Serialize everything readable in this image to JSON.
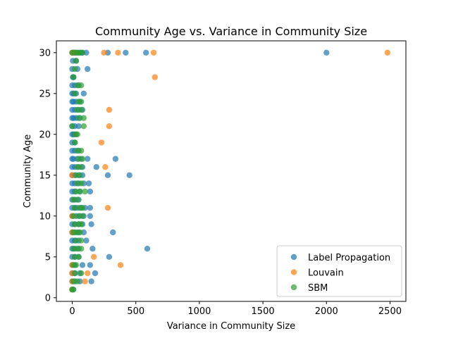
{
  "chart_data": {
    "type": "scatter",
    "title": "Community Age vs. Variance in Community Size",
    "xlabel": "Variance in Community Size",
    "ylabel": "Community Age",
    "xlim": [
      -125,
      2625
    ],
    "ylim": [
      -0.45,
      31.45
    ],
    "xticks": [
      0,
      500,
      1000,
      1500,
      2000,
      2500
    ],
    "yticks": [
      0,
      5,
      10,
      15,
      20,
      25,
      30
    ],
    "grid": false,
    "legend_position": "bottom-right",
    "series": [
      {
        "name": "Label Propagation",
        "color": "#1f77b4",
        "points": [
          [
            0,
            30
          ],
          [
            10,
            30
          ],
          [
            20,
            30
          ],
          [
            30,
            30
          ],
          [
            50,
            30
          ],
          [
            70,
            30
          ],
          [
            80,
            30
          ],
          [
            110,
            30
          ],
          [
            280,
            30
          ],
          [
            420,
            30
          ],
          [
            580,
            30
          ],
          [
            2000,
            30
          ],
          [
            5,
            29
          ],
          [
            30,
            29
          ],
          [
            0,
            28
          ],
          [
            40,
            28
          ],
          [
            120,
            28
          ],
          [
            5,
            27
          ],
          [
            10,
            27
          ],
          [
            0,
            26
          ],
          [
            20,
            26
          ],
          [
            50,
            26
          ],
          [
            0,
            25
          ],
          [
            10,
            25
          ],
          [
            30,
            25
          ],
          [
            90,
            25
          ],
          [
            0,
            24
          ],
          [
            10,
            24
          ],
          [
            30,
            24
          ],
          [
            60,
            24
          ],
          [
            0,
            23
          ],
          [
            20,
            23
          ],
          [
            50,
            23
          ],
          [
            80,
            23
          ],
          [
            0,
            22
          ],
          [
            10,
            22
          ],
          [
            30,
            22
          ],
          [
            60,
            22
          ],
          [
            0,
            21
          ],
          [
            20,
            21
          ],
          [
            50,
            21
          ],
          [
            0,
            20
          ],
          [
            10,
            20
          ],
          [
            30,
            20
          ],
          [
            0,
            19
          ],
          [
            20,
            19
          ],
          [
            0,
            18
          ],
          [
            20,
            18
          ],
          [
            50,
            18
          ],
          [
            0,
            17
          ],
          [
            10,
            17
          ],
          [
            40,
            17
          ],
          [
            70,
            17
          ],
          [
            120,
            17
          ],
          [
            340,
            17
          ],
          [
            0,
            16
          ],
          [
            20,
            16
          ],
          [
            50,
            16
          ],
          [
            80,
            16
          ],
          [
            190,
            16
          ],
          [
            0,
            15
          ],
          [
            20,
            15
          ],
          [
            50,
            15
          ],
          [
            80,
            15
          ],
          [
            280,
            15
          ],
          [
            450,
            15
          ],
          [
            0,
            14
          ],
          [
            20,
            14
          ],
          [
            50,
            14
          ],
          [
            90,
            14
          ],
          [
            130,
            14
          ],
          [
            0,
            13
          ],
          [
            20,
            13
          ],
          [
            60,
            13
          ],
          [
            140,
            13
          ],
          [
            0,
            12
          ],
          [
            20,
            12
          ],
          [
            50,
            12
          ],
          [
            0,
            11
          ],
          [
            20,
            11
          ],
          [
            40,
            11
          ],
          [
            70,
            11
          ],
          [
            100,
            11
          ],
          [
            140,
            11
          ],
          [
            0,
            10
          ],
          [
            30,
            10
          ],
          [
            60,
            10
          ],
          [
            90,
            10
          ],
          [
            140,
            10
          ],
          [
            0,
            9
          ],
          [
            20,
            9
          ],
          [
            50,
            9
          ],
          [
            80,
            9
          ],
          [
            150,
            9
          ],
          [
            0,
            8
          ],
          [
            20,
            8
          ],
          [
            50,
            8
          ],
          [
            90,
            8
          ],
          [
            320,
            8
          ],
          [
            0,
            7
          ],
          [
            20,
            7
          ],
          [
            50,
            7
          ],
          [
            110,
            7
          ],
          [
            0,
            6
          ],
          [
            20,
            6
          ],
          [
            50,
            6
          ],
          [
            160,
            6
          ],
          [
            590,
            6
          ],
          [
            0,
            5
          ],
          [
            20,
            5
          ],
          [
            50,
            5
          ],
          [
            290,
            5
          ],
          [
            0,
            4
          ],
          [
            20,
            4
          ],
          [
            80,
            4
          ],
          [
            140,
            4
          ],
          [
            0,
            3
          ],
          [
            20,
            3
          ],
          [
            60,
            3
          ],
          [
            180,
            3
          ],
          [
            0,
            2
          ],
          [
            20,
            2
          ],
          [
            60,
            2
          ],
          [
            150,
            2
          ],
          [
            0,
            1
          ],
          [
            10,
            1
          ]
        ]
      },
      {
        "name": "Louvain",
        "color": "#ff7f0e",
        "points": [
          [
            0,
            30
          ],
          [
            20,
            30
          ],
          [
            250,
            30
          ],
          [
            360,
            30
          ],
          [
            640,
            30
          ],
          [
            2480,
            30
          ],
          [
            650,
            27
          ],
          [
            290,
            23
          ],
          [
            290,
            21
          ],
          [
            230,
            19
          ],
          [
            260,
            16
          ],
          [
            0,
            15
          ],
          [
            280,
            11
          ],
          [
            0,
            10
          ],
          [
            0,
            8
          ],
          [
            170,
            5
          ],
          [
            0,
            4
          ],
          [
            380,
            4
          ],
          [
            0,
            3
          ],
          [
            120,
            3
          ],
          [
            0,
            2
          ],
          [
            100,
            2
          ],
          [
            0,
            1
          ]
        ]
      },
      {
        "name": "SBM",
        "color": "#2ca02c",
        "points": [
          [
            0,
            30
          ],
          [
            20,
            30
          ],
          [
            40,
            30
          ],
          [
            60,
            30
          ],
          [
            80,
            30
          ],
          [
            30,
            29
          ],
          [
            20,
            28
          ],
          [
            10,
            27
          ],
          [
            40,
            26
          ],
          [
            70,
            26
          ],
          [
            20,
            25
          ],
          [
            50,
            24
          ],
          [
            70,
            24
          ],
          [
            40,
            23
          ],
          [
            70,
            23
          ],
          [
            50,
            22
          ],
          [
            90,
            22
          ],
          [
            0,
            21
          ],
          [
            90,
            21
          ],
          [
            20,
            20
          ],
          [
            40,
            20
          ],
          [
            20,
            19
          ],
          [
            40,
            18
          ],
          [
            70,
            18
          ],
          [
            50,
            17
          ],
          [
            80,
            17
          ],
          [
            40,
            16
          ],
          [
            70,
            16
          ],
          [
            30,
            15
          ],
          [
            60,
            15
          ],
          [
            40,
            14
          ],
          [
            70,
            14
          ],
          [
            30,
            13
          ],
          [
            60,
            13
          ],
          [
            100,
            13
          ],
          [
            10,
            12
          ],
          [
            40,
            12
          ],
          [
            20,
            11
          ],
          [
            60,
            11
          ],
          [
            80,
            11
          ],
          [
            10,
            10
          ],
          [
            50,
            10
          ],
          [
            80,
            10
          ],
          [
            20,
            9
          ],
          [
            50,
            9
          ],
          [
            70,
            9
          ],
          [
            10,
            8
          ],
          [
            40,
            8
          ],
          [
            60,
            8
          ],
          [
            30,
            7
          ],
          [
            70,
            7
          ],
          [
            10,
            6
          ],
          [
            40,
            6
          ],
          [
            70,
            6
          ],
          [
            20,
            5
          ],
          [
            50,
            5
          ],
          [
            10,
            4
          ],
          [
            30,
            4
          ],
          [
            20,
            3
          ],
          [
            70,
            3
          ],
          [
            10,
            2
          ],
          [
            40,
            2
          ],
          [
            0,
            1
          ],
          [
            5,
            1
          ]
        ]
      }
    ]
  }
}
